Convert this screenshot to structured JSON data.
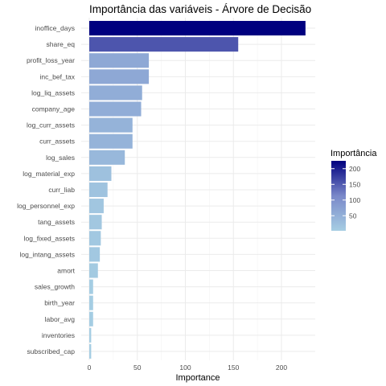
{
  "chart_data": {
    "type": "bar",
    "orientation": "horizontal",
    "title": "Importância das variáveis - Árvore de Decisão",
    "xlabel": "Importance",
    "ylabel": "",
    "xlim": [
      0,
      228
    ],
    "x_ticks": [
      0,
      50,
      100,
      150,
      200
    ],
    "grid": true,
    "categories": [
      "inoffice_days",
      "share_eq",
      "profit_loss_year",
      "inc_bef_tax",
      "log_liq_assets",
      "company_age",
      "log_curr_assets",
      "curr_assets",
      "log_sales",
      "log_material_exp",
      "curr_liab",
      "log_personnel_exp",
      "tang_assets",
      "log_fixed_assets",
      "log_intang_assets",
      "amort",
      "sales_growth",
      "birth_year",
      "labor_avg",
      "inventories",
      "subscribed_cap"
    ],
    "values": [
      225,
      155,
      62,
      62,
      55,
      54,
      45,
      45,
      37,
      23,
      19,
      15,
      13,
      12,
      11,
      9,
      4,
      4,
      4,
      2,
      2
    ],
    "legend": {
      "title": "Importância",
      "position": "right",
      "ticks": [
        50,
        100,
        150,
        200
      ],
      "range": [
        2,
        225
      ],
      "color_low": "#a6cee3",
      "color_mid": "#7a88c9",
      "color_high": "#00007f"
    }
  }
}
